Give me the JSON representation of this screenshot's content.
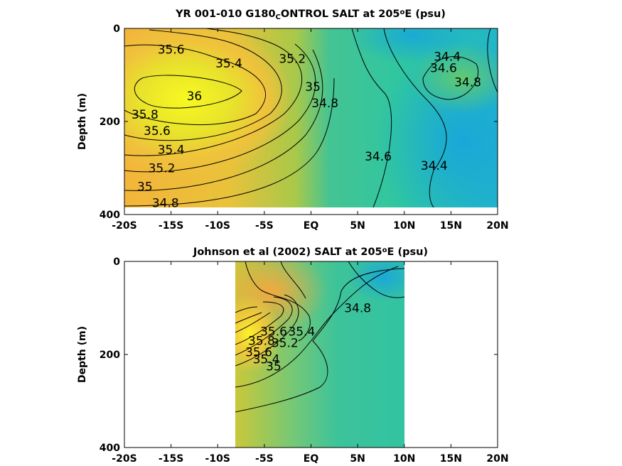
{
  "chart_data": [
    {
      "type": "heatmap",
      "title": {
        "prefix": "YR 001-010 G180",
        "subscript": "C",
        "middle": "ONTROL SALT at 205",
        "superscript": "o",
        "suffix": "E (psu)"
      },
      "ylabel": "Depth (m)",
      "x_ticks": [
        "-20S",
        "-15S",
        "-10S",
        "-5S",
        "EQ",
        "5N",
        "10N",
        "15N",
        "20N"
      ],
      "y_ticks": [
        "0",
        "200",
        "400"
      ],
      "xlim": [
        -20,
        20
      ],
      "ylim": [
        0,
        400
      ],
      "data_extent": {
        "x": [
          -20,
          20
        ],
        "depth": [
          0,
          385
        ]
      },
      "colormap": {
        "low": 34.2,
        "high": 36.0
      },
      "contour_labels": [
        {
          "text": "35.6",
          "x": -15,
          "y": 45
        },
        {
          "text": "35.4",
          "x": -8.8,
          "y": 75
        },
        {
          "text": "35.2",
          "x": -2,
          "y": 65
        },
        {
          "text": "36",
          "x": -12.5,
          "y": 145
        },
        {
          "text": "35",
          "x": 0.2,
          "y": 125
        },
        {
          "text": "34.8",
          "x": 1.5,
          "y": 160
        },
        {
          "text": "35.8",
          "x": -17.8,
          "y": 185
        },
        {
          "text": "35.6",
          "x": -16.5,
          "y": 220
        },
        {
          "text": "35.4",
          "x": -15,
          "y": 260
        },
        {
          "text": "35.2",
          "x": -16,
          "y": 300
        },
        {
          "text": "35",
          "x": -17.8,
          "y": 340
        },
        {
          "text": "34.8",
          "x": -15.6,
          "y": 375
        },
        {
          "text": "34.6",
          "x": 7.2,
          "y": 275
        },
        {
          "text": "34.4",
          "x": 13.2,
          "y": 295
        },
        {
          "text": "34.4",
          "x": 14.6,
          "y": 60
        },
        {
          "text": "34.6",
          "x": 14.2,
          "y": 85
        },
        {
          "text": "34.8",
          "x": 16.8,
          "y": 115
        }
      ]
    },
    {
      "type": "heatmap",
      "title": {
        "prefix": "Johnson et al (2002) SALT at 205",
        "superscript": "o",
        "suffix": "E (psu)"
      },
      "ylabel": "Depth (m)",
      "x_ticks": [
        "-20S",
        "-15S",
        "-10S",
        "-5S",
        "EQ",
        "5N",
        "10N",
        "15N",
        "20N"
      ],
      "y_ticks": [
        "0",
        "200",
        "400"
      ],
      "xlim": [
        -20,
        20
      ],
      "ylim": [
        0,
        400
      ],
      "data_extent": {
        "x": [
          -8,
          10
        ],
        "depth": [
          0,
          400
        ]
      },
      "colormap": {
        "low": 34.2,
        "high": 36.0
      },
      "contour_labels": [
        {
          "text": "34.8",
          "x": 5,
          "y": 100
        },
        {
          "text": "35.4",
          "x": -1,
          "y": 150
        },
        {
          "text": "35.2",
          "x": -2.8,
          "y": 175
        },
        {
          "text": "35.6",
          "x": -4,
          "y": 150
        },
        {
          "text": "35.8",
          "x": -5.3,
          "y": 170
        },
        {
          "text": "35.6",
          "x": -5.6,
          "y": 195
        },
        {
          "text": "35.4",
          "x": -4.8,
          "y": 210
        },
        {
          "text": "35",
          "x": -4,
          "y": 225
        }
      ]
    }
  ]
}
